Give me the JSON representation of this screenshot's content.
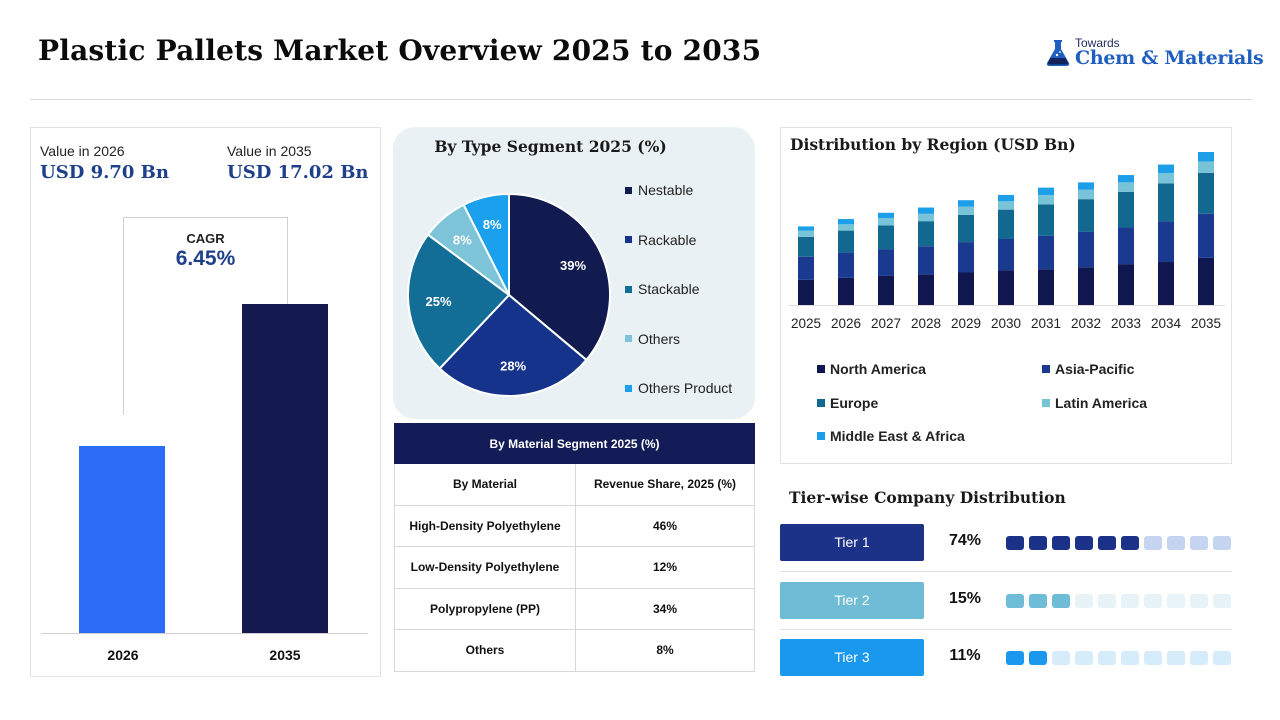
{
  "title": "Plastic Pallets Market Overview 2025 to 2035",
  "logo": {
    "top": "Towards",
    "main": "Chem & Materials"
  },
  "market_value": {
    "label_2026": "Value in 2026",
    "value_2026": "USD 9.70 Bn",
    "label_2035": "Value in 2035",
    "value_2035": "USD 17.02 Bn",
    "cagr_label": "CAGR",
    "cagr_value": "6.45%"
  },
  "colors": {
    "navy": "#0f1650",
    "dark_blue": "#1b3a8c",
    "teal": "#1a6b96",
    "light_teal": "#71bfd6",
    "sky": "#1aa3ee",
    "bright_blue": "#2f6ff5"
  },
  "chart_data": [
    {
      "type": "bar",
      "categories": [
        "2026",
        "2035"
      ],
      "values": [
        9.7,
        17.02
      ],
      "title": "",
      "xlabel": "",
      "ylabel": "",
      "ylim": [
        0,
        20.6
      ],
      "colors": [
        "#2a6cf5",
        "#141a4f"
      ],
      "grid": false
    },
    {
      "type": "pie",
      "title": "By Type Segment 2025 (%)",
      "labels": [
        "Nestable",
        "Rackable",
        "Stackable",
        "Others",
        "Others Product"
      ],
      "values": [
        39,
        28,
        25,
        8,
        8
      ],
      "colors": [
        "#111b4f",
        "#15338a",
        "#126e97",
        "#7ec4d8",
        "#1aa0ec"
      ],
      "legend": "right"
    },
    {
      "type": "table",
      "title": "By  Material Segment 2025 (%)",
      "columns": [
        "By Material",
        "Revenue Share, 2025 (%)"
      ],
      "rows": [
        [
          "High-Density Polyethylene",
          "46%"
        ],
        [
          "Low-Density Polyethylene",
          "12%"
        ],
        [
          "Polypropylene (PP)",
          "34%"
        ],
        [
          "Others",
          "8%"
        ]
      ]
    },
    {
      "type": "bar",
      "stacked": true,
      "title": "Distribution by Region (USD Bn)",
      "categories": [
        "2025",
        "2026",
        "2027",
        "2028",
        "2029",
        "2030",
        "2031",
        "2032",
        "2033",
        "2034",
        "2035"
      ],
      "series": [
        {
          "name": "North America",
          "values": [
            2.4,
            2.6,
            2.8,
            2.9,
            3.1,
            3.3,
            3.4,
            3.6,
            3.9,
            4.1,
            4.5
          ],
          "color": "#0f1650"
        },
        {
          "name": "Asia-Pacific",
          "values": [
            2.2,
            2.4,
            2.5,
            2.7,
            2.9,
            3.0,
            3.2,
            3.4,
            3.5,
            3.9,
            4.2
          ],
          "color": "#1a3a8f"
        },
        {
          "name": "Europe",
          "values": [
            1.9,
            2.1,
            2.3,
            2.4,
            2.6,
            2.8,
            3.0,
            3.1,
            3.4,
            3.6,
            3.9
          ],
          "color": "#13688f"
        },
        {
          "name": "Latin America",
          "values": [
            0.6,
            0.6,
            0.7,
            0.7,
            0.8,
            0.8,
            0.9,
            0.9,
            0.9,
            1.0,
            1.1
          ],
          "color": "#79c3d9"
        },
        {
          "name": "Middle East & Africa",
          "values": [
            0.4,
            0.5,
            0.5,
            0.6,
            0.6,
            0.6,
            0.7,
            0.7,
            0.7,
            0.8,
            0.9
          ],
          "color": "#1c9ee8"
        }
      ],
      "legend": "bottom",
      "grid": false
    }
  ],
  "tiers": {
    "title": "Tier-wise Company Distribution",
    "items": [
      {
        "label": "Tier 1",
        "percent": "74%",
        "filled": 6,
        "total": 10,
        "color": "#1b3288",
        "empty_color": "#c5d4f0"
      },
      {
        "label": "Tier 2",
        "percent": "15%",
        "filled": 3,
        "total": 10,
        "color": "#6fbcd6",
        "empty_color": "#e7f3f7"
      },
      {
        "label": "Tier 3",
        "percent": "11%",
        "filled": 2,
        "total": 10,
        "color": "#1a98ee",
        "empty_color": "#d6ecfb"
      }
    ]
  }
}
